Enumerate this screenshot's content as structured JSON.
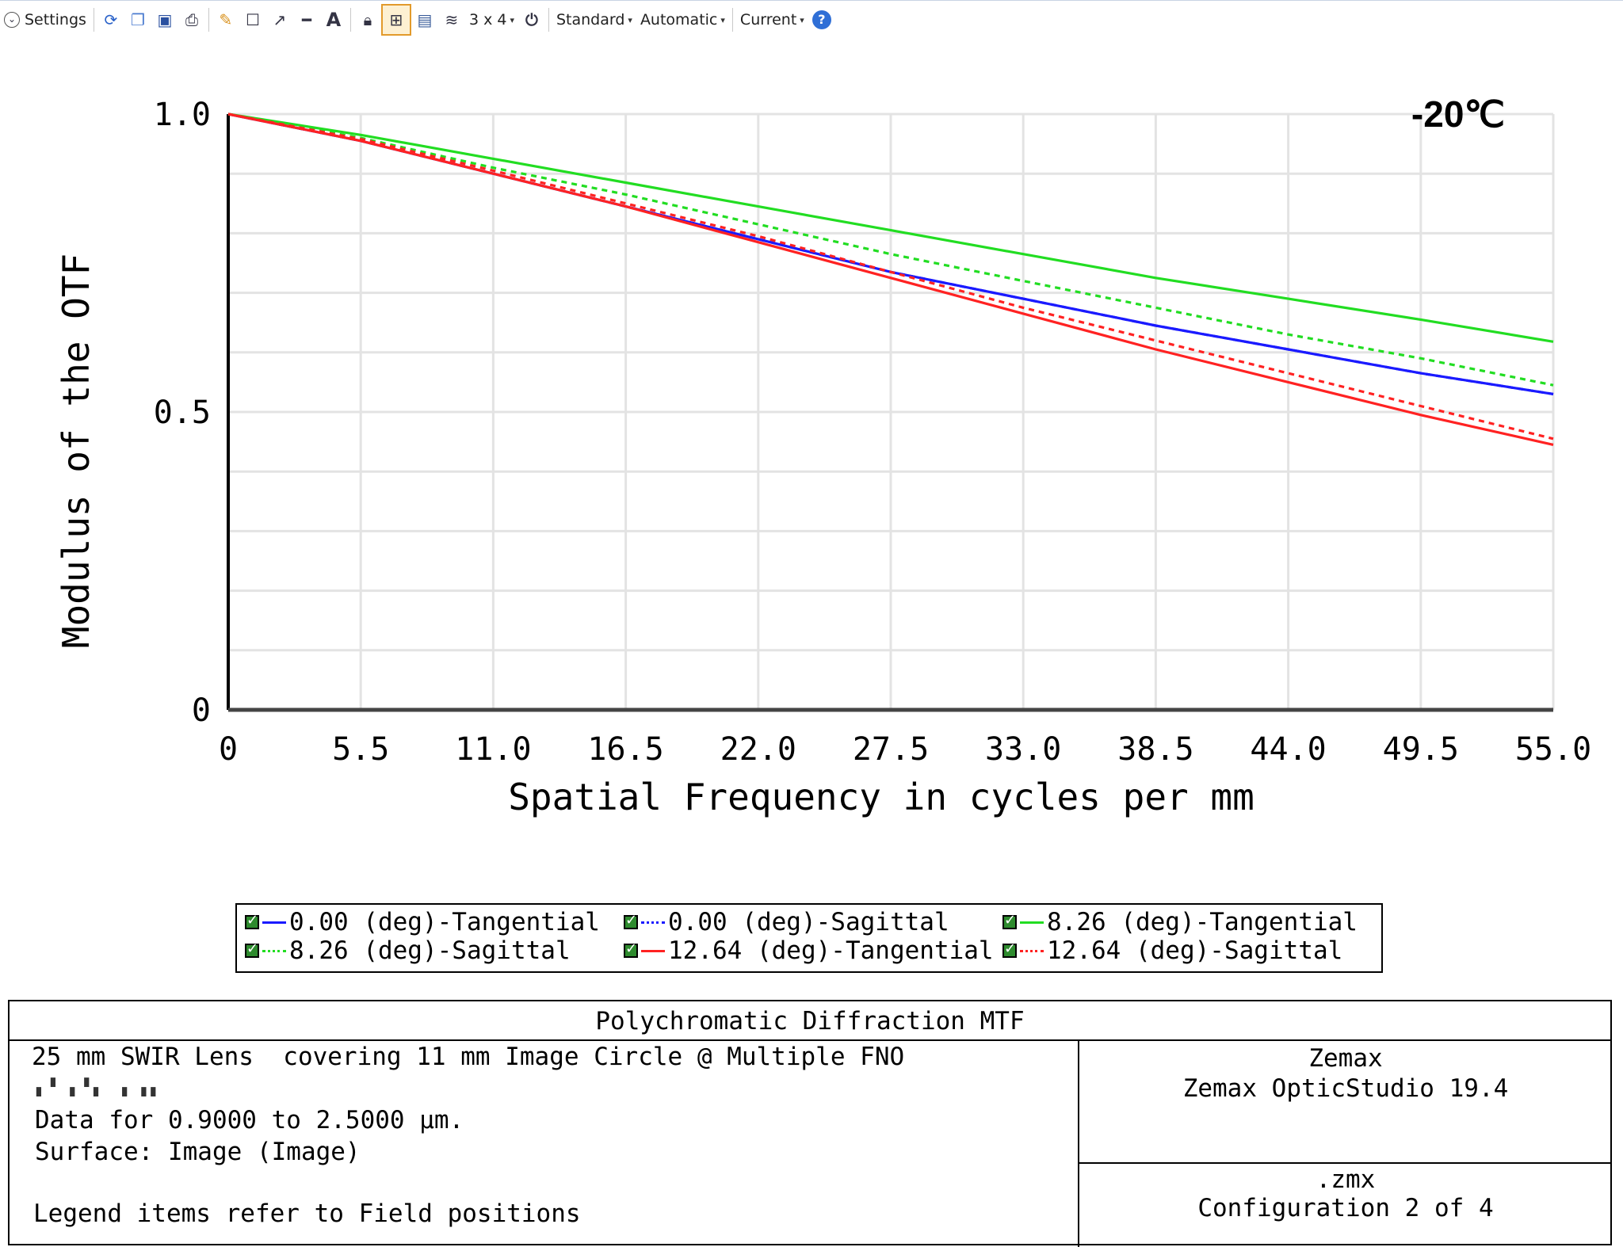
{
  "toolbar": {
    "settings_label": "Settings",
    "layout_label": "3 x 4",
    "standard_label": "Standard",
    "automatic_label": "Automatic",
    "current_label": "Current"
  },
  "chart_data": {
    "type": "line",
    "ylabel": "Modulus of the OTF",
    "xlabel": "Spatial Frequency in cycles per mm",
    "annotation": "-20℃",
    "xlim": [
      0,
      55
    ],
    "ylim": [
      0,
      1
    ],
    "x_ticks": [
      "0",
      "5.5",
      "11.0",
      "16.5",
      "22.0",
      "27.5",
      "33.0",
      "38.5",
      "44.0",
      "49.5",
      "55.0"
    ],
    "y_ticks": [
      "0",
      "0.5",
      "1.0"
    ],
    "grid": true,
    "x": [
      0,
      5.5,
      11,
      16.5,
      22,
      27.5,
      33,
      38.5,
      44,
      49.5,
      55
    ],
    "series": [
      {
        "name": "0.00 (deg)-Tangential",
        "color": "#1a1aff",
        "dash": false,
        "values": [
          1.0,
          0.955,
          0.9,
          0.845,
          0.79,
          0.735,
          0.69,
          0.645,
          0.605,
          0.565,
          0.53
        ]
      },
      {
        "name": "0.00 (deg)-Sagittal",
        "color": "#1a1aff",
        "dash": true,
        "values": [
          1.0,
          0.955,
          0.9,
          0.845,
          0.79,
          0.735,
          0.69,
          0.645,
          0.605,
          0.565,
          0.53
        ]
      },
      {
        "name": "8.26 (deg)-Tangential",
        "color": "#22dd22",
        "dash": false,
        "values": [
          1.0,
          0.965,
          0.925,
          0.885,
          0.845,
          0.805,
          0.765,
          0.725,
          0.69,
          0.655,
          0.618
        ]
      },
      {
        "name": "8.26 (deg)-Sagittal",
        "color": "#22dd22",
        "dash": true,
        "values": [
          1.0,
          0.96,
          0.91,
          0.865,
          0.815,
          0.765,
          0.72,
          0.675,
          0.63,
          0.59,
          0.545
        ]
      },
      {
        "name": "12.64 (deg)-Tangential",
        "color": "#ff2222",
        "dash": false,
        "values": [
          1.0,
          0.955,
          0.9,
          0.845,
          0.785,
          0.725,
          0.665,
          0.605,
          0.55,
          0.495,
          0.445
        ]
      },
      {
        "name": "12.64 (deg)-Sagittal",
        "color": "#ff2222",
        "dash": true,
        "values": [
          1.0,
          0.958,
          0.905,
          0.85,
          0.795,
          0.735,
          0.675,
          0.62,
          0.565,
          0.51,
          0.455
        ]
      }
    ]
  },
  "legend": {
    "items": [
      "0.00 (deg)-Tangential",
      "0.00 (deg)-Sagittal",
      "8.26 (deg)-Tangential",
      "8.26 (deg)-Sagittal",
      "12.64 (deg)-Tangential",
      "12.64 (deg)-Sagittal"
    ]
  },
  "info": {
    "title": "Polychromatic Diffraction MTF",
    "line1": "25 mm SWIR Lens  covering 11 mm Image Circle @ Multiple FNO",
    "line2": "Data for 0.9000 to 2.5000 μm.",
    "line3": "Surface: Image (Image)",
    "line4": "Legend items refer to Field positions",
    "company": "Zemax",
    "software": "Zemax OpticStudio 19.4",
    "file": ".zmx",
    "config": "Configuration 2 of 4"
  }
}
